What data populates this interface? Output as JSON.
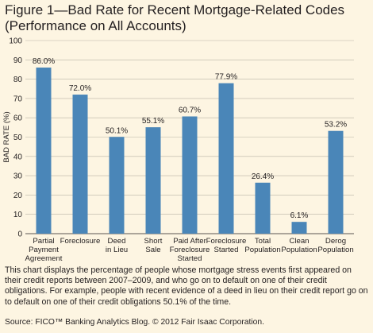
{
  "figure": {
    "title_line1": "Figure 1—Bad Rate for Recent Mortgage-Related Codes",
    "title_line2": "(Performance on All Accounts)",
    "caption": "This chart displays the percentage of people whose mortgage stress events first appeared on their credit reports between 2007–2009, and who go on to default on one of their credit obligations. For example, people with recent evidence of a deed in lieu on their credit report go on to default on one of their credit obligations 50.1% of the time.",
    "source": "Source: FICO™ Banking Analytics Blog. © 2012 Fair Isaac Corporation."
  },
  "colors": {
    "background": "#fdf5e2",
    "bar": "#4a86b8",
    "gridline": "#b9b3a5",
    "text": "#231f20"
  },
  "chart_data": {
    "type": "bar",
    "title": "Figure 1—Bad Rate for Recent Mortgage-Related Codes (Performance on All Accounts)",
    "xlabel": "",
    "ylabel": "BAD RATE (%)",
    "ylim": [
      0,
      100
    ],
    "yticks": [
      0,
      10,
      20,
      30,
      40,
      50,
      60,
      70,
      80,
      90,
      100
    ],
    "grid": true,
    "categories": [
      "Partial Payment Agreement",
      "Foreclosure",
      "Deed in Lieu",
      "Short Sale",
      "Paid After Foreclosure Started",
      "Foreclosure Started",
      "Total Population",
      "Clean Population",
      "Derog Population"
    ],
    "category_lines": [
      [
        "Partial",
        "Payment",
        "Agreement"
      ],
      [
        "Foreclosure"
      ],
      [
        "Deed",
        "in Lieu"
      ],
      [
        "Short",
        "Sale"
      ],
      [
        "Paid After",
        "Foreclosure",
        "Started"
      ],
      [
        "Foreclosure",
        "Started"
      ],
      [
        "Total",
        "Population"
      ],
      [
        "Clean",
        "Population"
      ],
      [
        "Derog",
        "Population"
      ]
    ],
    "values": [
      86.0,
      72.0,
      50.1,
      55.1,
      60.7,
      77.9,
      26.4,
      6.1,
      53.2
    ],
    "data_labels": [
      "86.0%",
      "72.0%",
      "50.1%",
      "55.1%",
      "60.7%",
      "77.9%",
      "26.4%",
      "6.1%",
      "53.2%"
    ]
  }
}
